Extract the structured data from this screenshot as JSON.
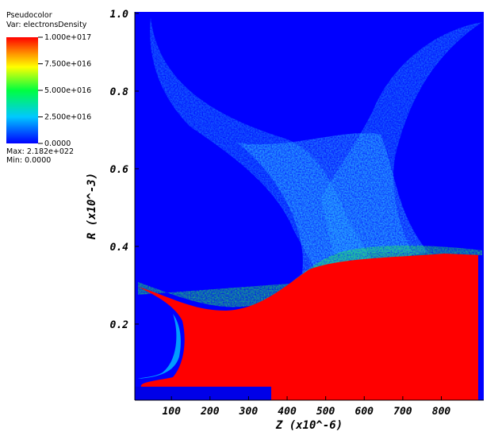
{
  "chart_data": {
    "type": "heatmap",
    "x_label": "Z (x10^-6)",
    "y_label": "R (x10^-3)",
    "xlim": [
      5,
      910
    ],
    "xticks": [
      100,
      200,
      300,
      400,
      500,
      600,
      700,
      800
    ],
    "ylim": [
      0.004,
      1.004
    ],
    "yticks": [
      0.2,
      0.4,
      0.6,
      0.8,
      {
        "value": 1,
        "label": "1.0"
      }
    ],
    "legend": {
      "title": "Pseudocolor",
      "variable": "Var: electronsDensity",
      "max_label": "Max: 2.182e+022",
      "min_label": "Min: 0.0000",
      "clim": [
        0,
        100000000000000000
      ],
      "ticks": [
        {
          "value": 100000000000000000,
          "label": "1.000e+017"
        },
        {
          "value": 75000000000000000,
          "label": "7.500e+016"
        },
        {
          "value": 50000000000000000,
          "label": "5.000e+016"
        },
        {
          "value": 25000000000000000,
          "label": "2.500e+016"
        },
        {
          "value": 0,
          "label": "0.0000"
        }
      ]
    }
  }
}
